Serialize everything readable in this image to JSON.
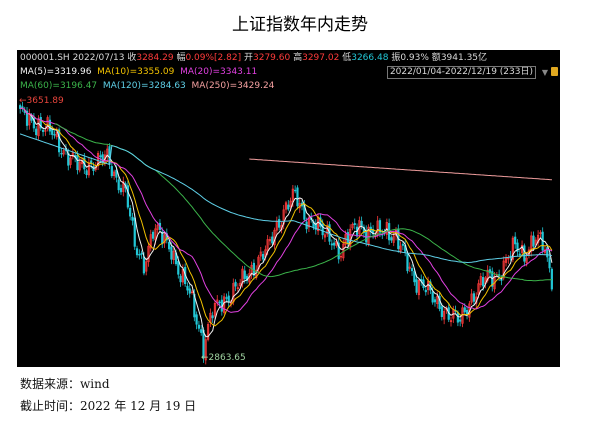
{
  "page": {
    "title": "上证指数年内走势",
    "source_label": "数据来源：wind",
    "date_label": "截止时间：2022 年 12 月 19 日"
  },
  "header": {
    "code": "000001.SH",
    "date": "2022/07/13",
    "close_label": "收",
    "close": "3284.29",
    "change_label": "幅",
    "change": "0.09%[2.82]",
    "open_label": "开",
    "open": "3279.60",
    "high_label": "高",
    "high": "3297.02",
    "low_label": "低",
    "low": "3266.48",
    "amp_label": "振",
    "amp": "0.93%",
    "amount_label": "额",
    "amount": "3941.35亿",
    "range": "2022/01/04-2022/12/19 (233日)"
  },
  "ma": [
    {
      "label": "MA(5)=3319.96",
      "color": "#f2f2f2"
    },
    {
      "label": "MA(10)=3355.09",
      "color": "#f2c200"
    },
    {
      "label": "MA(20)=3343.11",
      "color": "#e040e0"
    },
    {
      "label": "MA(60)=3196.47",
      "color": "#3bb34a"
    },
    {
      "label": "MA(120)=3284.63",
      "color": "#5fd0e8"
    },
    {
      "label": "MA(250)=3429.24",
      "color": "#f4a0a0"
    }
  ],
  "annotations": {
    "max_label": "3651.89",
    "min_label": "2863.65"
  },
  "colors": {
    "up": "#ff3b3b",
    "down": "#22c7d6",
    "background": "#000000"
  },
  "chart_data": {
    "type": "candlestick",
    "x_range": [
      "2022/01/04",
      "2022/12/19"
    ],
    "n_days": 233,
    "ylim": [
      2830,
      3700
    ],
    "max_price": 3651.89,
    "min_price": 2863.65,
    "trend_keypoints": [
      [
        0,
        3620
      ],
      [
        8,
        3590
      ],
      [
        14,
        3560
      ],
      [
        20,
        3500
      ],
      [
        26,
        3450
      ],
      [
        32,
        3470
      ],
      [
        38,
        3480
      ],
      [
        42,
        3420
      ],
      [
        46,
        3380
      ],
      [
        50,
        3200
      ],
      [
        54,
        3150
      ],
      [
        58,
        3250
      ],
      [
        62,
        3230
      ],
      [
        66,
        3200
      ],
      [
        70,
        3100
      ],
      [
        74,
        3050
      ],
      [
        78,
        2950
      ],
      [
        80,
        2880
      ],
      [
        84,
        2990
      ],
      [
        88,
        3030
      ],
      [
        92,
        3050
      ],
      [
        96,
        3080
      ],
      [
        100,
        3120
      ],
      [
        104,
        3160
      ],
      [
        108,
        3190
      ],
      [
        112,
        3270
      ],
      [
        116,
        3330
      ],
      [
        120,
        3360
      ],
      [
        124,
        3300
      ],
      [
        128,
        3280
      ],
      [
        132,
        3240
      ],
      [
        136,
        3230
      ],
      [
        140,
        3180
      ],
      [
        144,
        3240
      ],
      [
        148,
        3280
      ],
      [
        152,
        3240
      ],
      [
        156,
        3240
      ],
      [
        160,
        3260
      ],
      [
        164,
        3230
      ],
      [
        168,
        3160
      ],
      [
        172,
        3100
      ],
      [
        176,
        3080
      ],
      [
        180,
        3030
      ],
      [
        184,
        3010
      ],
      [
        188,
        2980
      ],
      [
        192,
        2960
      ],
      [
        196,
        3030
      ],
      [
        200,
        3070
      ],
      [
        204,
        3100
      ],
      [
        208,
        3110
      ],
      [
        212,
        3150
      ],
      [
        216,
        3200
      ],
      [
        220,
        3180
      ],
      [
        224,
        3220
      ],
      [
        228,
        3210
      ],
      [
        232,
        3110
      ]
    ]
  }
}
